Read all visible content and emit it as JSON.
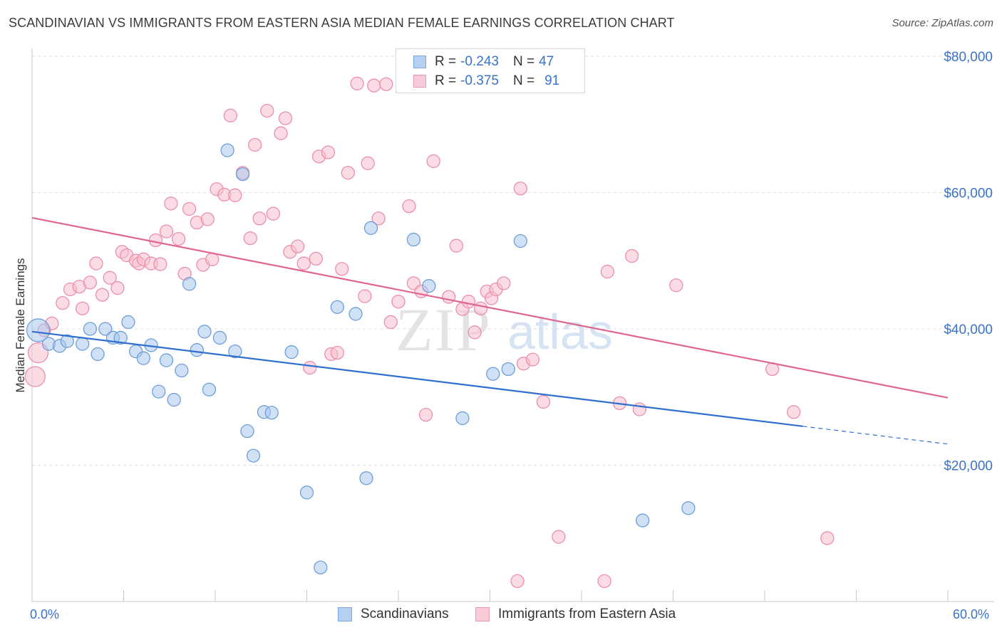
{
  "header": {
    "title": "SCANDINAVIAN VS IMMIGRANTS FROM EASTERN ASIA MEDIAN FEMALE EARNINGS CORRELATION CHART",
    "source": "Source: ZipAtlas.com"
  },
  "legend": {
    "series1": {
      "r_label": "R =",
      "r_value": "-0.243",
      "n_label": "N =",
      "n_value": "47"
    },
    "series2": {
      "r_label": "R =",
      "r_value": "-0.375",
      "n_label": "N =",
      "n_value": "91"
    }
  },
  "bottom_legend": {
    "series1": "Scandinavians",
    "series2": "Immigrants from Eastern Asia"
  },
  "axes": {
    "x_min_label": "0.0%",
    "x_max_label": "60.0%",
    "ylabel": "Median Female Earnings"
  },
  "watermark": {
    "zip": "ZIP",
    "atlas": "atlas"
  },
  "colors": {
    "blue_fill": "#a9c8ef",
    "blue_stroke": "#6f9fd8",
    "blue_line": "#2f6fcf",
    "pink_fill": "#f7c0d0",
    "pink_stroke": "#eb8fab",
    "pink_line": "#e06690",
    "tick_text": "#3a73c8"
  },
  "chart_data": {
    "type": "scatter",
    "title": "SCANDINAVIAN VS IMMIGRANTS FROM EASTERN ASIA MEDIAN FEMALE EARNINGS CORRELATION CHART",
    "xlabel": "",
    "ylabel": "Median Female Earnings",
    "xlim": [
      0,
      60
    ],
    "ylim": [
      0,
      80000
    ],
    "yticks": [
      20000,
      40000,
      60000,
      80000
    ],
    "ytick_labels": [
      "$20,000",
      "$40,000",
      "$60,000",
      "$80,000"
    ],
    "xtick_labels": [
      "0.0%",
      "60.0%"
    ],
    "grid": true,
    "legend_position": "top-center",
    "series": [
      {
        "name": "Scandinavians",
        "r": -0.243,
        "n": 47,
        "trend": {
          "x0": 0,
          "y0": 39600,
          "x1": 60,
          "y1": 23100,
          "solid_until_x": 50.5
        },
        "points": [
          [
            0.4,
            39800,
            16
          ],
          [
            1.1,
            37800,
            9
          ],
          [
            1.8,
            37500,
            9
          ],
          [
            2.3,
            38200,
            9
          ],
          [
            3.3,
            37800,
            9
          ],
          [
            3.8,
            40000,
            9
          ],
          [
            4.3,
            36300,
            9
          ],
          [
            4.8,
            40000,
            9
          ],
          [
            5.3,
            38700,
            9
          ],
          [
            5.8,
            38700,
            9
          ],
          [
            6.3,
            41000,
            9
          ],
          [
            6.8,
            36700,
            9
          ],
          [
            7.3,
            35700,
            9
          ],
          [
            7.8,
            37600,
            9
          ],
          [
            8.3,
            30800,
            9
          ],
          [
            8.8,
            35400,
            9
          ],
          [
            9.3,
            29600,
            9
          ],
          [
            9.8,
            33900,
            9
          ],
          [
            10.3,
            46600,
            9
          ],
          [
            10.8,
            36900,
            9
          ],
          [
            11.3,
            39600,
            9
          ],
          [
            11.6,
            31100,
            9
          ],
          [
            12.3,
            38700,
            9
          ],
          [
            12.8,
            66200,
            9
          ],
          [
            13.3,
            36700,
            9
          ],
          [
            13.8,
            62700,
            9
          ],
          [
            14.1,
            25000,
            9
          ],
          [
            14.5,
            21400,
            9
          ],
          [
            15.2,
            27800,
            9
          ],
          [
            15.7,
            27700,
            9
          ],
          [
            17.0,
            36600,
            9
          ],
          [
            18.0,
            16000,
            9
          ],
          [
            18.9,
            5000,
            9
          ],
          [
            20.0,
            43200,
            9
          ],
          [
            21.2,
            42200,
            9
          ],
          [
            21.9,
            18100,
            9
          ],
          [
            22.2,
            54800,
            9
          ],
          [
            25.0,
            53100,
            9
          ],
          [
            26.0,
            46300,
            9
          ],
          [
            28.2,
            26900,
            9
          ],
          [
            30.2,
            33400,
            9
          ],
          [
            31.2,
            34100,
            9
          ],
          [
            32.0,
            52900,
            9
          ],
          [
            40.0,
            11900,
            9
          ],
          [
            43.0,
            13700,
            9
          ]
        ]
      },
      {
        "name": "Immigrants from Eastern Asia",
        "r": -0.375,
        "n": 91,
        "trend": {
          "x0": 0,
          "y0": 56300,
          "x1": 60,
          "y1": 29900
        },
        "points": [
          [
            0.2,
            33000,
            14
          ],
          [
            0.4,
            36500,
            14
          ],
          [
            0.8,
            39800,
            9
          ],
          [
            1.3,
            40800,
            9
          ],
          [
            2.0,
            43800,
            9
          ],
          [
            2.5,
            45800,
            9
          ],
          [
            3.1,
            46200,
            9
          ],
          [
            3.3,
            43000,
            9
          ],
          [
            3.8,
            46800,
            9
          ],
          [
            4.2,
            49600,
            9
          ],
          [
            4.6,
            45000,
            9
          ],
          [
            5.1,
            47500,
            9
          ],
          [
            5.6,
            46000,
            9
          ],
          [
            5.9,
            51300,
            9
          ],
          [
            6.2,
            50800,
            9
          ],
          [
            6.8,
            50000,
            9
          ],
          [
            7.0,
            49600,
            9
          ],
          [
            7.3,
            50200,
            9
          ],
          [
            7.8,
            49600,
            9
          ],
          [
            8.1,
            53000,
            9
          ],
          [
            8.4,
            49500,
            9
          ],
          [
            8.8,
            54300,
            9
          ],
          [
            9.1,
            58400,
            9
          ],
          [
            9.6,
            53200,
            9
          ],
          [
            10.0,
            48100,
            9
          ],
          [
            10.3,
            57600,
            9
          ],
          [
            10.8,
            55600,
            9
          ],
          [
            11.2,
            49400,
            9
          ],
          [
            11.5,
            56100,
            9
          ],
          [
            11.8,
            50200,
            9
          ],
          [
            12.1,
            60500,
            9
          ],
          [
            12.6,
            59700,
            9
          ],
          [
            13.0,
            71300,
            9
          ],
          [
            13.3,
            59600,
            9
          ],
          [
            13.8,
            62900,
            9
          ],
          [
            14.3,
            53300,
            9
          ],
          [
            14.6,
            67000,
            9
          ],
          [
            14.9,
            56200,
            9
          ],
          [
            15.4,
            72000,
            9
          ],
          [
            15.8,
            56900,
            9
          ],
          [
            16.3,
            68700,
            9
          ],
          [
            16.6,
            70900,
            9
          ],
          [
            16.9,
            51300,
            9
          ],
          [
            17.4,
            52100,
            9
          ],
          [
            17.8,
            49600,
            9
          ],
          [
            18.2,
            34300,
            9
          ],
          [
            18.6,
            50300,
            9
          ],
          [
            18.8,
            65300,
            9
          ],
          [
            19.4,
            65900,
            9
          ],
          [
            19.6,
            36300,
            9
          ],
          [
            20.0,
            36500,
            9
          ],
          [
            20.3,
            48800,
            9
          ],
          [
            20.7,
            62900,
            9
          ],
          [
            21.3,
            76000,
            9
          ],
          [
            21.8,
            44800,
            9
          ],
          [
            22.0,
            64300,
            9
          ],
          [
            22.4,
            75700,
            9
          ],
          [
            22.7,
            56200,
            9
          ],
          [
            23.2,
            75900,
            9
          ],
          [
            23.5,
            41000,
            9
          ],
          [
            24.0,
            44000,
            9
          ],
          [
            24.7,
            58000,
            9
          ],
          [
            25.0,
            46700,
            9
          ],
          [
            25.5,
            45500,
            9
          ],
          [
            25.8,
            27400,
            9
          ],
          [
            26.3,
            64600,
            9
          ],
          [
            27.3,
            44700,
            9
          ],
          [
            27.8,
            52200,
            9
          ],
          [
            28.2,
            42900,
            9
          ],
          [
            28.6,
            44000,
            9
          ],
          [
            29.0,
            39500,
            9
          ],
          [
            29.4,
            43000,
            9
          ],
          [
            29.8,
            45500,
            9
          ],
          [
            30.1,
            44500,
            9
          ],
          [
            30.4,
            45800,
            9
          ],
          [
            30.9,
            46700,
            9
          ],
          [
            32.0,
            60600,
            9
          ],
          [
            32.2,
            34900,
            9
          ],
          [
            32.8,
            35500,
            9
          ],
          [
            33.5,
            29300,
            9
          ],
          [
            34.5,
            9500,
            9
          ],
          [
            37.7,
            48400,
            9
          ],
          [
            38.5,
            29100,
            9
          ],
          [
            39.3,
            50700,
            9
          ],
          [
            39.8,
            28200,
            9
          ],
          [
            42.2,
            46400,
            9
          ],
          [
            48.5,
            34100,
            9
          ],
          [
            49.9,
            27800,
            9
          ],
          [
            52.1,
            9300,
            9
          ],
          [
            31.8,
            3000,
            9
          ],
          [
            37.5,
            3000,
            9
          ]
        ]
      }
    ]
  }
}
